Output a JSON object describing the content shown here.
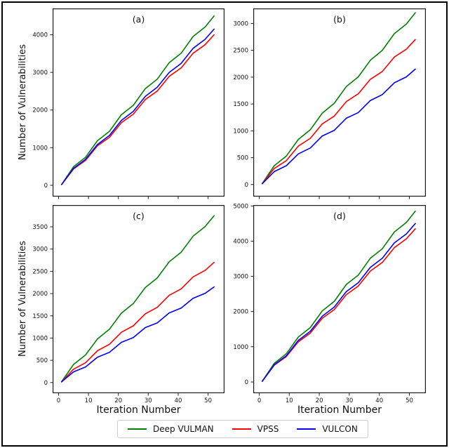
{
  "figure": {
    "ylabel": "Number of Vulnerabilities",
    "xlabel": "Iteration Number",
    "border_color": "#000000",
    "background": "#ffffff"
  },
  "legend": {
    "position": "bottom-center",
    "items": [
      {
        "label": "Deep VULMAN",
        "color": "#008000"
      },
      {
        "label": "VPSS",
        "color": "#ff0000"
      },
      {
        "label": "VULCON",
        "color": "#0000ff"
      }
    ]
  },
  "chart_data": [
    {
      "id": "a",
      "type": "line",
      "title": "(a)",
      "xlabel": "",
      "ylabel": "Number of Vulnerabilities",
      "xlim": [
        -2,
        55.5
      ],
      "ylim": [
        -300,
        4700
      ],
      "xticks": [
        0,
        10,
        20,
        30,
        40,
        50
      ],
      "yticks": [
        0,
        1000,
        2000,
        3000,
        4000
      ],
      "show_xticklabels": false,
      "grid": false,
      "x": [
        1,
        5,
        9,
        13,
        17,
        21,
        25,
        29,
        33,
        37,
        41,
        45,
        49,
        52
      ],
      "series": [
        {
          "name": "Deep VULMAN",
          "color": "#008000",
          "values": [
            20,
            495,
            745,
            1185,
            1435,
            1875,
            2125,
            2570,
            2820,
            3260,
            3510,
            3955,
            4205,
            4500
          ]
        },
        {
          "name": "VPSS",
          "color": "#ff0000",
          "values": [
            20,
            435,
            660,
            1050,
            1275,
            1665,
            1890,
            2280,
            2505,
            2895,
            3120,
            3510,
            3735,
            4000
          ]
        },
        {
          "name": "VULCON",
          "color": "#0000ff",
          "values": [
            20,
            450,
            690,
            1085,
            1325,
            1725,
            1965,
            2365,
            2605,
            3000,
            3240,
            3640,
            3880,
            4150
          ]
        }
      ]
    },
    {
      "id": "b",
      "type": "line",
      "title": "(b)",
      "xlabel": "",
      "ylabel": "",
      "xlim": [
        -2,
        55.5
      ],
      "ylim": [
        -225,
        3280
      ],
      "xticks": [
        0,
        10,
        20,
        30,
        40,
        50
      ],
      "yticks": [
        0,
        500,
        1000,
        1500,
        2000,
        2500,
        3000
      ],
      "show_xticklabels": false,
      "grid": false,
      "x": [
        1,
        5,
        9,
        13,
        17,
        21,
        25,
        29,
        33,
        37,
        41,
        45,
        49,
        52
      ],
      "series": [
        {
          "name": "Deep VULMAN",
          "color": "#008000",
          "values": [
            20,
            350,
            530,
            840,
            1020,
            1330,
            1515,
            1825,
            2005,
            2315,
            2500,
            2810,
            2990,
            3200
          ]
        },
        {
          "name": "VPSS",
          "color": "#ff0000",
          "values": [
            15,
            300,
            445,
            715,
            860,
            1130,
            1275,
            1545,
            1690,
            1960,
            2105,
            2375,
            2520,
            2700
          ]
        },
        {
          "name": "VULCON",
          "color": "#0000ff",
          "values": [
            15,
            240,
            350,
            570,
            680,
            905,
            1010,
            1235,
            1340,
            1565,
            1675,
            1895,
            2005,
            2150
          ]
        }
      ]
    },
    {
      "id": "c",
      "type": "line",
      "title": "(c)",
      "xlabel": "Iteration Number",
      "ylabel": "Number of Vulnerabilities",
      "xlim": [
        -2,
        55.5
      ],
      "ylim": [
        -240,
        3990
      ],
      "xticks": [
        0,
        10,
        20,
        30,
        40,
        50
      ],
      "yticks": [
        0,
        500,
        1000,
        1500,
        2000,
        2500,
        3000,
        3500
      ],
      "show_xticklabels": true,
      "grid": false,
      "x": [
        1,
        5,
        9,
        13,
        17,
        21,
        25,
        29,
        33,
        37,
        41,
        45,
        49,
        52
      ],
      "series": [
        {
          "name": "Deep VULMAN",
          "color": "#008000",
          "values": [
            20,
            405,
            620,
            980,
            1200,
            1560,
            1775,
            2135,
            2350,
            2715,
            2930,
            3290,
            3505,
            3750
          ]
        },
        {
          "name": "VPSS",
          "color": "#ff0000",
          "values": [
            15,
            300,
            445,
            715,
            860,
            1130,
            1275,
            1545,
            1690,
            1960,
            2105,
            2375,
            2520,
            2700
          ]
        },
        {
          "name": "VULCON",
          "color": "#0000ff",
          "values": [
            15,
            240,
            350,
            570,
            680,
            905,
            1010,
            1235,
            1340,
            1565,
            1675,
            1895,
            2005,
            2150
          ]
        }
      ]
    },
    {
      "id": "d",
      "type": "line",
      "title": "(d)",
      "xlabel": "Iteration Number",
      "ylabel": "",
      "xlim": [
        -2,
        55.5
      ],
      "ylim": [
        -320,
        5025
      ],
      "xticks": [
        0,
        10,
        20,
        30,
        40,
        50
      ],
      "yticks": [
        0,
        1000,
        2000,
        3000,
        4000,
        5000
      ],
      "show_xticklabels": true,
      "grid": false,
      "x": [
        1,
        5,
        9,
        13,
        17,
        21,
        25,
        29,
        33,
        37,
        41,
        45,
        49,
        52
      ],
      "series": [
        {
          "name": "Deep VULMAN",
          "color": "#008000",
          "values": [
            20,
            530,
            800,
            1275,
            1545,
            2020,
            2290,
            2770,
            3035,
            3515,
            3785,
            4260,
            4530,
            4850
          ]
        },
        {
          "name": "VPSS",
          "color": "#ff0000",
          "values": [
            20,
            475,
            720,
            1140,
            1390,
            1810,
            2055,
            2480,
            2725,
            3150,
            3395,
            3815,
            4065,
            4350
          ]
        },
        {
          "name": "VULCON",
          "color": "#0000ff",
          "values": [
            20,
            490,
            745,
            1180,
            1440,
            1870,
            2130,
            2565,
            2820,
            3255,
            3515,
            3950,
            4205,
            4500
          ]
        }
      ]
    }
  ]
}
